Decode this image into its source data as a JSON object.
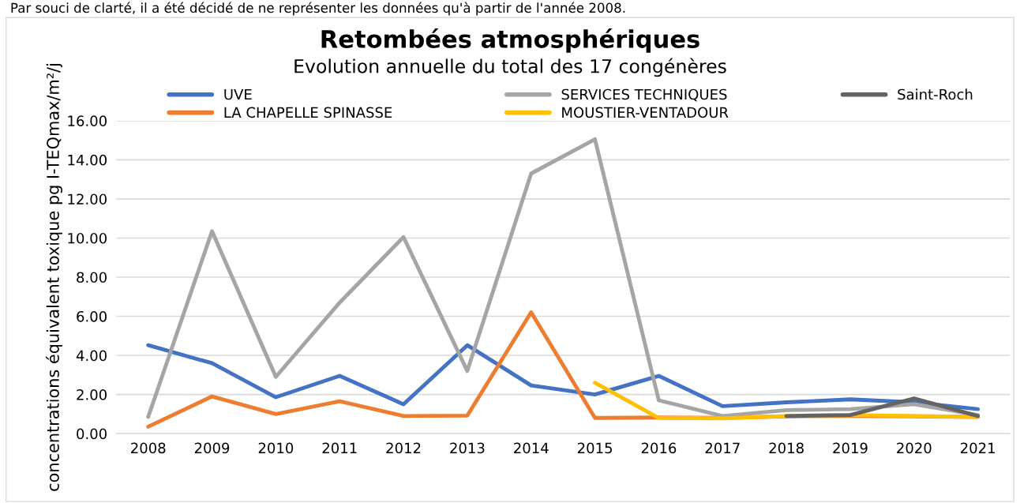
{
  "chart_data": {
    "type": "line",
    "title": "Retombées atmosphériques",
    "subtitle": "Evolution annuelle du total des 17 congénères",
    "ylabel": "concentrations équivalent toxique pg I-TEQmax/m²/j",
    "annotations": [
      "Par souci de clarté, il a été décidé de ne représenter les données qu'à partir de l'année 2008."
    ],
    "categories": [
      "2008",
      "2009",
      "2010",
      "2011",
      "2012",
      "2013",
      "2014",
      "2015",
      "2016",
      "2017",
      "2018",
      "2019",
      "2020",
      "2021"
    ],
    "series": [
      {
        "name": "UVE",
        "color": "#4472c4",
        "values": [
          4.52,
          3.6,
          1.86,
          2.95,
          1.5,
          4.52,
          2.46,
          2.0,
          2.95,
          1.4,
          1.6,
          1.75,
          1.6,
          1.25
        ]
      },
      {
        "name": "LA CHAPELLE SPINASSE",
        "color": "#ed7d31",
        "values": [
          0.35,
          1.9,
          1.0,
          1.65,
          0.9,
          0.92,
          6.2,
          0.8,
          0.82,
          0.8,
          0.88,
          0.9,
          0.88,
          0.85
        ]
      },
      {
        "name": "SERVICES TECHNIQUES",
        "color": "#a5a5a5",
        "values": [
          0.85,
          10.35,
          2.9,
          6.7,
          10.05,
          3.2,
          13.3,
          15.05,
          1.7,
          0.9,
          1.2,
          1.25,
          1.5,
          0.95
        ]
      },
      {
        "name": "MOUSTIER-VENTADOUR",
        "color": "#ffc000",
        "values": [
          null,
          null,
          null,
          null,
          null,
          null,
          null,
          2.6,
          0.8,
          0.78,
          0.9,
          0.95,
          0.9,
          0.85
        ]
      },
      {
        "name": "Saint-Roch",
        "color": "#636363",
        "values": [
          null,
          null,
          null,
          null,
          null,
          null,
          null,
          null,
          null,
          null,
          0.9,
          0.95,
          1.8,
          0.9
        ]
      }
    ],
    "ylim": [
      0,
      16
    ],
    "yticks": [
      {
        "value": 0,
        "label": "0.00"
      },
      {
        "value": 2,
        "label": "2.00"
      },
      {
        "value": 4,
        "label": "4.00"
      },
      {
        "value": 6,
        "label": "6.00"
      },
      {
        "value": 8,
        "label": "8.00"
      },
      {
        "value": 10,
        "label": "10.00"
      },
      {
        "value": 12,
        "label": "12.00"
      },
      {
        "value": 14,
        "label": "14.00"
      },
      {
        "value": 16,
        "label": "16.00"
      }
    ],
    "grid": "y",
    "legend": "top",
    "marker": "none",
    "line_style": "solid"
  }
}
